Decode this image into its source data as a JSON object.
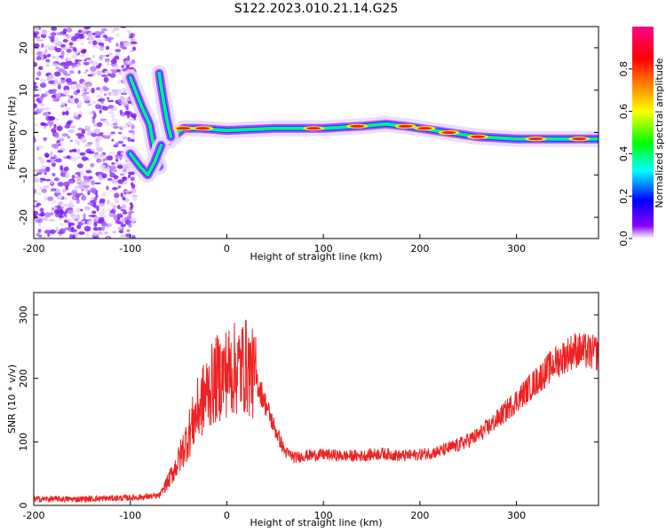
{
  "title": "S122.2023.010.21.14.G25",
  "colors": {
    "snr_line": "#ee2222",
    "frame": "#000000"
  },
  "chart_data": [
    {
      "type": "heatmap",
      "name": "spectrogram",
      "xlabel": "Height of straight line (km)",
      "ylabel": "Frequency (Hz)",
      "xlim": [
        -200,
        385
      ],
      "ylim": [
        -25,
        25
      ],
      "x_ticks": [
        {
          "value": -200,
          "label": "-200"
        },
        {
          "value": -100,
          "label": "-100"
        },
        {
          "value": 0,
          "label": "0"
        },
        {
          "value": 100,
          "label": "100"
        },
        {
          "value": 200,
          "label": "200"
        },
        {
          "value": 300,
          "label": "300"
        }
      ],
      "y_ticks": [
        {
          "value": 20,
          "label": "20"
        },
        {
          "value": 10,
          "label": "10"
        },
        {
          "value": 0,
          "label": "0"
        },
        {
          "value": -10,
          "label": "-10"
        },
        {
          "value": -20,
          "label": "-20"
        }
      ],
      "noise_region_x": [
        -200,
        -95
      ],
      "main_ridge": [
        {
          "x": -60,
          "f": -2
        },
        {
          "x": -45,
          "f": 1
        },
        {
          "x": -30,
          "f": 1
        },
        {
          "x": 0,
          "f": 0.5
        },
        {
          "x": 50,
          "f": 1
        },
        {
          "x": 100,
          "f": 1
        },
        {
          "x": 140,
          "f": 1.5
        },
        {
          "x": 165,
          "f": 2
        },
        {
          "x": 185,
          "f": 1.5
        },
        {
          "x": 200,
          "f": 1
        },
        {
          "x": 230,
          "f": 0
        },
        {
          "x": 260,
          "f": -1
        },
        {
          "x": 300,
          "f": -1.5
        },
        {
          "x": 340,
          "f": -1.5
        },
        {
          "x": 385,
          "f": -1.5
        }
      ],
      "branch_upper": [
        {
          "x": -100,
          "f": 13
        },
        {
          "x": -88,
          "f": 6
        },
        {
          "x": -80,
          "f": 2
        },
        {
          "x": -75,
          "f": -4
        },
        {
          "x": -70,
          "f": -8
        }
      ],
      "branch_lower": [
        {
          "x": -100,
          "f": -5
        },
        {
          "x": -90,
          "f": -8
        },
        {
          "x": -82,
          "f": -10
        },
        {
          "x": -75,
          "f": -7
        },
        {
          "x": -68,
          "f": -3
        }
      ],
      "branch_mid": [
        {
          "x": -70,
          "f": 14
        },
        {
          "x": -66,
          "f": 8
        },
        {
          "x": -62,
          "f": 3
        },
        {
          "x": -58,
          "f": -1
        }
      ],
      "hot_spots": [
        {
          "x": -45,
          "f": 1
        },
        {
          "x": -25,
          "f": 1
        },
        {
          "x": 90,
          "f": 1
        },
        {
          "x": 135,
          "f": 1.5
        },
        {
          "x": 185,
          "f": 1.5
        },
        {
          "x": 205,
          "f": 1
        },
        {
          "x": 230,
          "f": 0
        },
        {
          "x": 260,
          "f": -1
        },
        {
          "x": 320,
          "f": -1.5
        },
        {
          "x": 365,
          "f": -1.5
        }
      ]
    },
    {
      "type": "colorbar",
      "label": "Normalized spectral amplitude",
      "range": [
        0,
        1
      ],
      "ticks": [
        {
          "value": 0.0,
          "label": "0.0"
        },
        {
          "value": 0.2,
          "label": "0.2"
        },
        {
          "value": 0.4,
          "label": "0.4"
        },
        {
          "value": 0.6,
          "label": "0.6"
        },
        {
          "value": 0.8,
          "label": "0.8"
        }
      ],
      "stops": [
        "#ffffff",
        "#8800ff",
        "#0000ff",
        "#00ffff",
        "#00ff00",
        "#ffff00",
        "#ff8800",
        "#ff0000",
        "#ff0088"
      ]
    },
    {
      "type": "line",
      "name": "snr",
      "xlabel": "Height of straight line (km)",
      "ylabel": "SNR (10 * v/v)",
      "xlim": [
        -200,
        385
      ],
      "ylim": [
        0,
        335
      ],
      "x_ticks": [
        {
          "value": -200,
          "label": "-200"
        },
        {
          "value": -100,
          "label": "-100"
        },
        {
          "value": 0,
          "label": "0"
        },
        {
          "value": 100,
          "label": "100"
        },
        {
          "value": 200,
          "label": "200"
        },
        {
          "value": 300,
          "label": "300"
        }
      ],
      "y_ticks": [
        {
          "value": 0,
          "label": "0"
        },
        {
          "value": 100,
          "label": "100"
        },
        {
          "value": 200,
          "label": "200"
        },
        {
          "value": 300,
          "label": "300"
        }
      ],
      "series": [
        {
          "x": [
            -200,
            -150,
            -100,
            -70,
            -60,
            -50,
            -40,
            -30,
            -20,
            -10,
            0,
            10,
            20,
            30,
            40,
            50,
            60,
            70,
            80,
            100,
            120,
            140,
            160,
            180,
            200,
            220,
            240,
            260,
            280,
            300,
            320,
            340,
            360,
            380
          ],
          "y": [
            10,
            10,
            12,
            15,
            40,
            70,
            110,
            150,
            180,
            200,
            210,
            215,
            220,
            200,
            160,
            120,
            85,
            75,
            78,
            80,
            78,
            78,
            82,
            78,
            80,
            85,
            95,
            110,
            135,
            165,
            195,
            225,
            245,
            240
          ]
        }
      ]
    }
  ]
}
